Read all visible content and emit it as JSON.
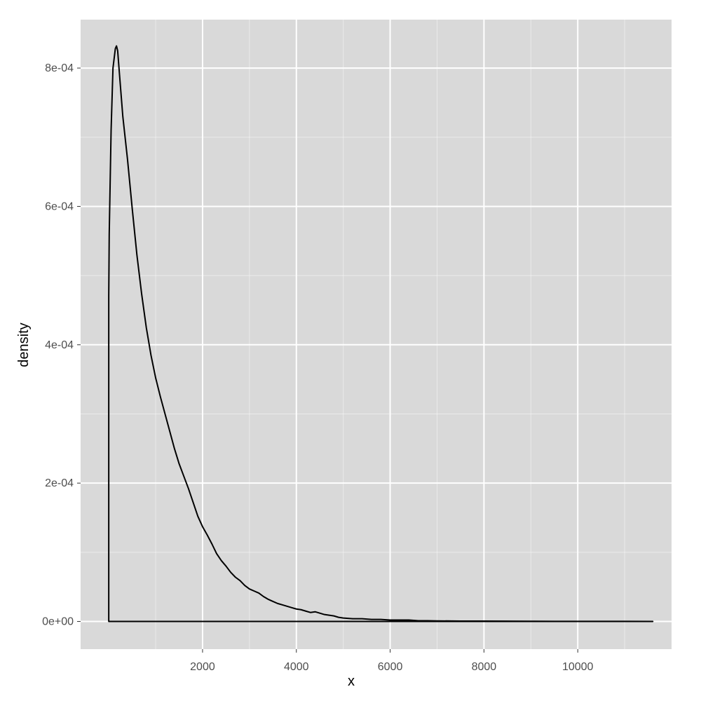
{
  "chart_data": {
    "type": "area",
    "title": "",
    "xlabel": "x",
    "ylabel": "density",
    "xlim": [
      -600,
      12000
    ],
    "ylim": [
      -4e-05,
      0.00087
    ],
    "x_ticks": [
      2000,
      4000,
      6000,
      8000,
      10000
    ],
    "x_tick_labels": [
      "2000",
      "4000",
      "6000",
      "8000",
      "10000"
    ],
    "x_minor_ticks": [
      1000,
      3000,
      5000,
      7000,
      9000,
      11000
    ],
    "y_ticks": [
      0,
      0.0002,
      0.0004,
      0.0006,
      0.0008
    ],
    "y_tick_labels": [
      "0e+00",
      "2e-04",
      "4e-04",
      "6e-04",
      "8e-04"
    ],
    "y_minor_ticks": [
      0.0001,
      0.0003,
      0.0005,
      0.0007
    ],
    "grid": true,
    "legend": "none",
    "colors": {
      "panel": "#d9d9d9",
      "grid": "#ffffff",
      "line": "#000000"
    },
    "series": [
      {
        "x": [
          0,
          10,
          50,
          90,
          140,
          165,
          190,
          230,
          300,
          400,
          500,
          600,
          700,
          800,
          900,
          1000,
          1100,
          1200,
          1300,
          1400,
          1500,
          1600,
          1700,
          1800,
          1900,
          2000,
          2100,
          2200,
          2300,
          2400,
          2500,
          2600,
          2700,
          2800,
          2900,
          3000,
          3100,
          3200,
          3300,
          3400,
          3500,
          3600,
          3700,
          3800,
          3900,
          4000,
          4100,
          4200,
          4300,
          4400,
          4500,
          4600,
          4700,
          4800,
          4900,
          5000,
          5200,
          5400,
          5600,
          5800,
          6000,
          6200,
          6400,
          6600,
          6800,
          7000,
          7500,
          8000,
          8500,
          9000,
          9500,
          10000,
          10500,
          11000,
          11600
        ],
        "y": [
          0.00047,
          0.00056,
          0.00071,
          0.0008,
          0.000828,
          0.000832,
          0.000825,
          0.00079,
          0.00073,
          0.000668,
          0.000597,
          0.00053,
          0.000474,
          0.000425,
          0.000385,
          0.000352,
          0.000325,
          0.0003,
          0.000275,
          0.00025,
          0.000228,
          0.00021,
          0.000192,
          0.000172,
          0.000152,
          0.000137,
          0.000125,
          0.000112,
          9.8e-05,
          8.8e-05,
          8e-05,
          7.1e-05,
          6.4e-05,
          5.9e-05,
          5.2e-05,
          4.7e-05,
          4.4e-05,
          4.1e-05,
          3.6e-05,
          3.2e-05,
          2.9e-05,
          2.6e-05,
          2.4e-05,
          2.2e-05,
          2e-05,
          1.8e-05,
          1.7e-05,
          1.5e-05,
          1.3e-05,
          1.4e-05,
          1.2e-05,
          1e-05,
          9e-06,
          8e-06,
          6e-06,
          5e-06,
          4e-06,
          4e-06,
          3e-06,
          3e-06,
          2e-06,
          2e-06,
          2e-06,
          1e-06,
          1e-06,
          8e-07,
          6e-07,
          5e-07,
          4e-07,
          3e-07,
          2e-07,
          2e-07,
          1e-07,
          1e-07,
          0
        ]
      }
    ]
  }
}
